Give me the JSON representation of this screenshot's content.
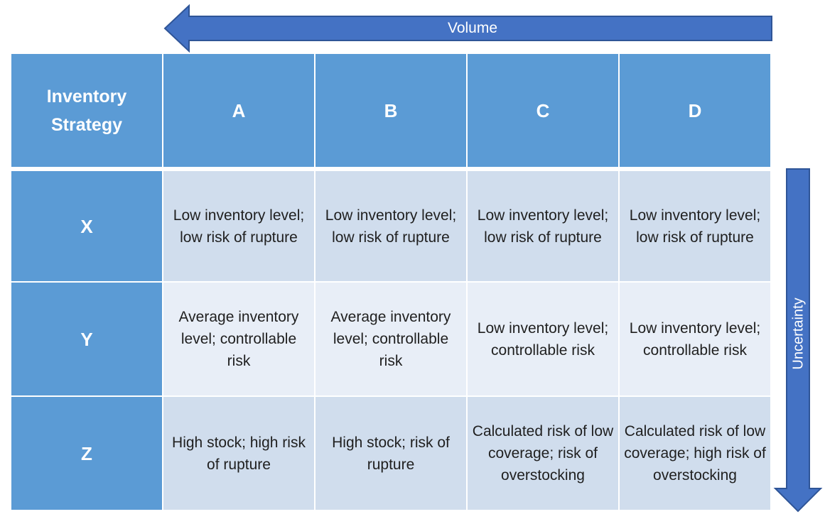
{
  "axes": {
    "volume_label": "Volume",
    "uncertainty_label": "Uncertainty",
    "arrow_color": "#4472c4",
    "arrow_border": "#2f5597"
  },
  "matrix": {
    "corner_label": "Inventory Strategy",
    "columns": [
      "A",
      "B",
      "C",
      "D"
    ],
    "rows": [
      {
        "label": "X",
        "cells": [
          "Low inventory level; low risk of rupture",
          "Low inventory level; low risk of rupture",
          "Low inventory level; low risk of rupture",
          "Low inventory level; low risk of rupture"
        ]
      },
      {
        "label": "Y",
        "cells": [
          "Average inventory level; controllable risk",
          "Average inventory level; controllable risk",
          "Low inventory level; controllable risk",
          "Low inventory level; controllable risk"
        ]
      },
      {
        "label": "Z",
        "cells": [
          "High stock; high risk of rupture",
          "High stock; risk of rupture",
          "Calculated risk of low coverage; risk of overstocking",
          "Calculated risk of low coverage; high risk of overstocking"
        ]
      }
    ],
    "colors": {
      "header": "#5b9bd5",
      "cell_dark": "#d0dded",
      "cell_light": "#e8eef7"
    }
  }
}
